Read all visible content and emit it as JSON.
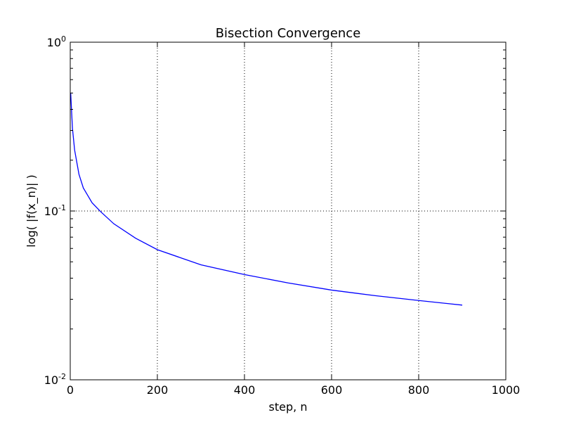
{
  "chart_data": {
    "type": "line",
    "title": "Bisection Convergence",
    "xlabel": "step, n",
    "ylabel": "log( |f(x_n)| )",
    "xlim": [
      0,
      1000
    ],
    "ylim": [
      0.01,
      1
    ],
    "yscale": "log",
    "grid": true,
    "line_color": "#0000ff",
    "x_ticks": [
      {
        "value": 0,
        "label": "0"
      },
      {
        "value": 200,
        "label": "200"
      },
      {
        "value": 400,
        "label": "400"
      },
      {
        "value": 600,
        "label": "600"
      },
      {
        "value": 800,
        "label": "800"
      },
      {
        "value": 1000,
        "label": "1000"
      }
    ],
    "y_ticks": [
      {
        "value": 0.01,
        "base": "10",
        "exp": "-2"
      },
      {
        "value": 0.1,
        "base": "10",
        "exp": "-1"
      },
      {
        "value": 1,
        "base": "10",
        "exp": "0"
      }
    ],
    "series": [
      {
        "x": [
          1,
          5,
          10,
          20,
          30,
          50,
          70,
          100,
          150,
          200,
          300,
          400,
          500,
          600,
          700,
          800,
          900
        ],
        "y": [
          0.5,
          0.31,
          0.23,
          0.165,
          0.137,
          0.112,
          0.099,
          0.084,
          0.069,
          0.059,
          0.048,
          0.042,
          0.0375,
          0.034,
          0.0315,
          0.0295,
          0.0277
        ]
      }
    ]
  }
}
